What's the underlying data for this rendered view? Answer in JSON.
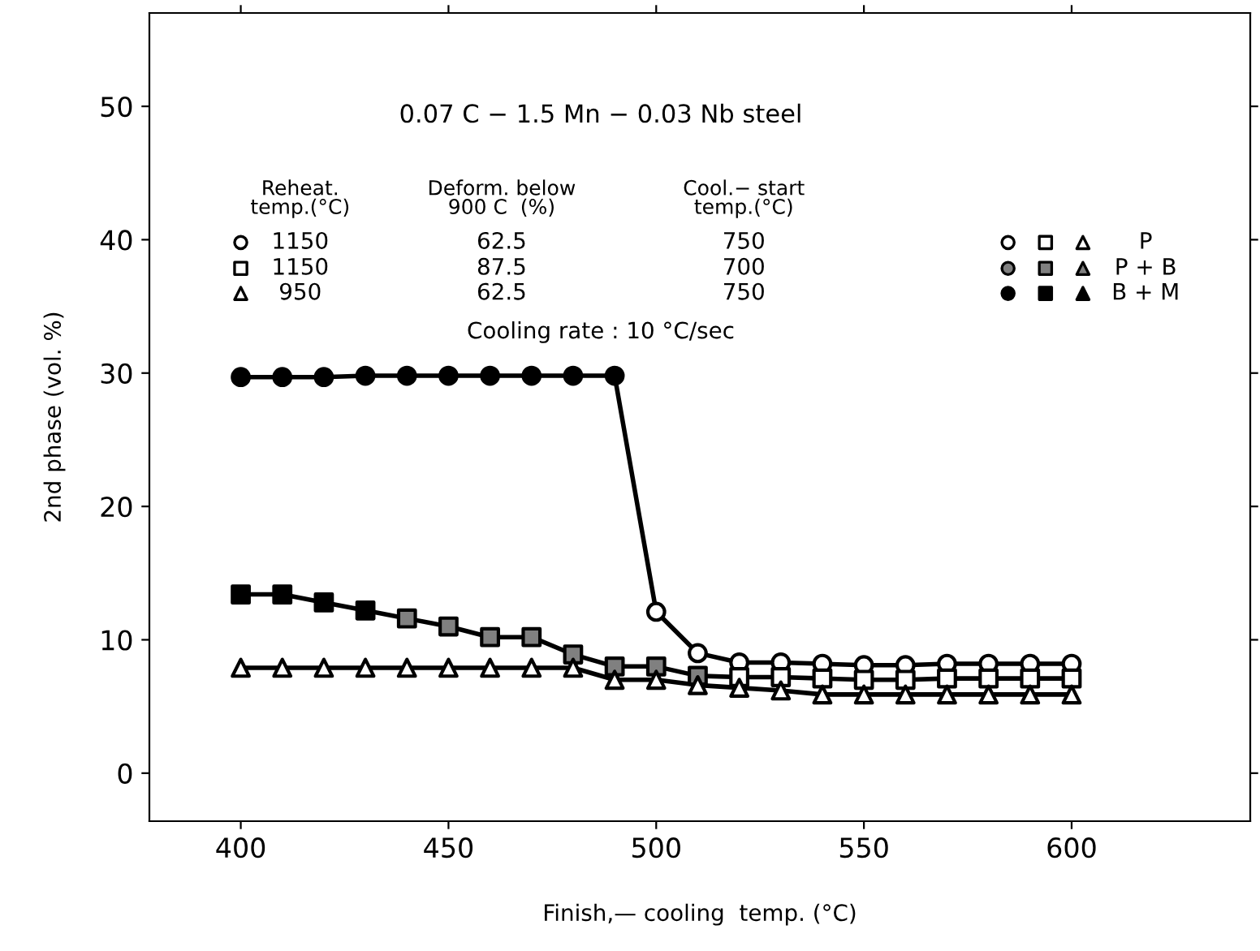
{
  "chart_data": {
    "type": "line",
    "title": "0.07 C − 1.5 Mn − 0.03 Nb steel",
    "xlabel": "Finish,— cooling  temp. (°C)",
    "ylabel": "2nd phase (vol. %)",
    "x": [
      400,
      410,
      420,
      430,
      440,
      450,
      460,
      470,
      480,
      490,
      500,
      510,
      520,
      530,
      540,
      550,
      560,
      570,
      580,
      590,
      600
    ],
    "series": [
      {
        "color": "#000000",
        "marker": "circle",
        "values": [
          29.7,
          29.7,
          29.7,
          29.8,
          29.8,
          29.8,
          29.8,
          29.8,
          29.8,
          29.8,
          12.1,
          9.0,
          8.3,
          8.3,
          8.2,
          8.1,
          8.1,
          8.2,
          8.2,
          8.2,
          8.2
        ],
        "colors": [
          "#000000",
          "#000000",
          "#000000",
          "#000000",
          "#000000",
          "#000000",
          "#000000",
          "#000000",
          "#000000",
          "#000000",
          "#ffffff",
          "#ffffff",
          "#ffffff",
          "#ffffff",
          "#ffffff",
          "#ffffff",
          "#ffffff",
          "#ffffff",
          "#ffffff",
          "#ffffff",
          "#ffffff"
        ]
      },
      {
        "color": "#000000",
        "marker": "square",
        "values": [
          13.4,
          13.4,
          12.8,
          12.2,
          11.6,
          11.0,
          10.2,
          10.2,
          8.9,
          8.0,
          8.0,
          7.3,
          7.2,
          7.2,
          7.1,
          7.0,
          7.0,
          7.1,
          7.1,
          7.1,
          7.1
        ],
        "colors": [
          "#000000",
          "#000000",
          "#000000",
          "#000000",
          "#808080",
          "#808080",
          "#808080",
          "#808080",
          "#808080",
          "#808080",
          "#808080",
          "#808080",
          "#ffffff",
          "#ffffff",
          "#ffffff",
          "#ffffff",
          "#ffffff",
          "#ffffff",
          "#ffffff",
          "#ffffff",
          "#ffffff"
        ]
      },
      {
        "color": "#000000",
        "marker": "triangle",
        "values": [
          7.9,
          7.9,
          7.9,
          7.9,
          7.9,
          7.9,
          7.9,
          7.9,
          7.9,
          7.0,
          7.0,
          6.6,
          6.4,
          6.2,
          5.9,
          5.9,
          5.9,
          5.9,
          5.9,
          5.9,
          5.9
        ],
        "colors": [
          "#ffffff",
          "#ffffff",
          "#ffffff",
          "#ffffff",
          "#ffffff",
          "#ffffff",
          "#ffffff",
          "#ffffff",
          "#ffffff",
          "#ffffff",
          "#ffffff",
          "#ffffff",
          "#ffffff",
          "#ffffff",
          "#ffffff",
          "#ffffff",
          "#ffffff",
          "#ffffff",
          "#ffffff",
          "#ffffff",
          "#ffffff"
        ]
      }
    ],
    "annotations": [
      "Reheat.\ntemp.(°C)",
      "Deform. below\n900 C  (%)",
      "Cool.− start\ntemp.(°C)",
      "1150",
      "62.5",
      "750",
      "1150",
      "87.5",
      "700",
      "950",
      "62.5",
      "750",
      "P",
      "P + B",
      "B + M",
      "Cooling rate : 10 °C/sec"
    ],
    "xlim": [
      378,
      643
    ],
    "ylim": [
      -3.6,
      57
    ],
    "xticks": [
      400,
      450,
      500,
      550,
      600
    ],
    "yticks": [
      0,
      10,
      20,
      30,
      40,
      50
    ],
    "line_style": "solid",
    "grid": false,
    "legend": false
  }
}
